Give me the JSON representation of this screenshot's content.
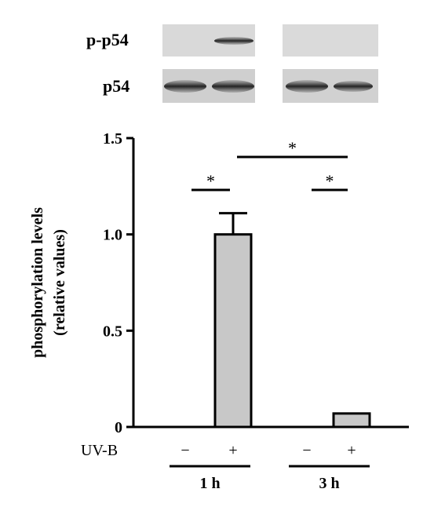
{
  "blots": {
    "rows": [
      {
        "label": "p-p54"
      },
      {
        "label": "p54"
      }
    ]
  },
  "chart_data": {
    "type": "bar",
    "ylabel_line1": "phosphorylation levels",
    "ylabel_line2": "(relative values)",
    "ylim": [
      0,
      1.5
    ],
    "yticks": [
      {
        "value": 0,
        "label": "0"
      },
      {
        "value": 0.5,
        "label": "0.5"
      },
      {
        "value": 1.0,
        "label": "1.0"
      },
      {
        "value": 1.5,
        "label": "1.5"
      }
    ],
    "bars": [
      {
        "group": "1 h",
        "uvb": "−",
        "value": 0,
        "error": 0
      },
      {
        "group": "1 h",
        "uvb": "+",
        "value": 1.0,
        "error": 0.11
      },
      {
        "group": "3 h",
        "uvb": "−",
        "value": 0,
        "error": 0
      },
      {
        "group": "3 h",
        "uvb": "+",
        "value": 0.07,
        "error": 0.005
      }
    ],
    "treatment_label": "UV-B",
    "groups": [
      "1 h",
      "3 h"
    ],
    "significance": [
      {
        "label": "*"
      },
      {
        "label": "*"
      },
      {
        "label": "*"
      }
    ],
    "bar_color": "#c8c8c8"
  }
}
